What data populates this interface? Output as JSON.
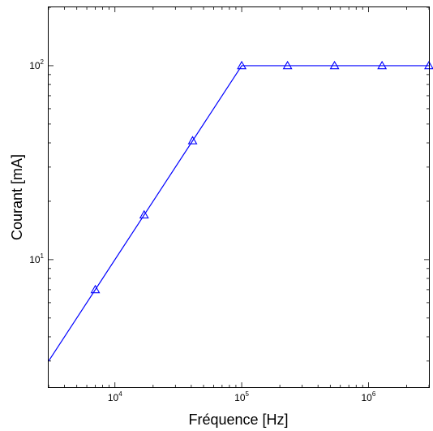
{
  "chart_data": {
    "type": "line",
    "title": "",
    "xlabel": "Fréquence  [Hz]",
    "ylabel": "Courant [mA]",
    "xscale": "log",
    "yscale": "log",
    "xlim": [
      3000,
      3000000
    ],
    "ylim": [
      2.2,
      200
    ],
    "grid": false,
    "x_ticks": [
      {
        "value": 10000,
        "base": "10",
        "exp": "4"
      },
      {
        "value": 100000,
        "base": "10",
        "exp": "5"
      },
      {
        "value": 1000000,
        "base": "10",
        "exp": "6"
      }
    ],
    "y_ticks": [
      {
        "value": 10,
        "base": "10",
        "exp": "1"
      },
      {
        "value": 100,
        "base": "10",
        "exp": "2"
      }
    ],
    "series": [
      {
        "color": "#0000ff",
        "marker": "triangle",
        "line": [
          {
            "x": 3000,
            "y": 3.0
          },
          {
            "x": 100000,
            "y": 100
          },
          {
            "x": 3000000,
            "y": 100
          }
        ],
        "points": [
          {
            "x": 7000,
            "y": 7.0
          },
          {
            "x": 17000,
            "y": 17.0
          },
          {
            "x": 41000,
            "y": 41.0
          },
          {
            "x": 100000,
            "y": 100
          },
          {
            "x": 230000,
            "y": 100
          },
          {
            "x": 540000,
            "y": 100
          },
          {
            "x": 1280000,
            "y": 100
          },
          {
            "x": 3000000,
            "y": 100
          }
        ]
      }
    ]
  }
}
